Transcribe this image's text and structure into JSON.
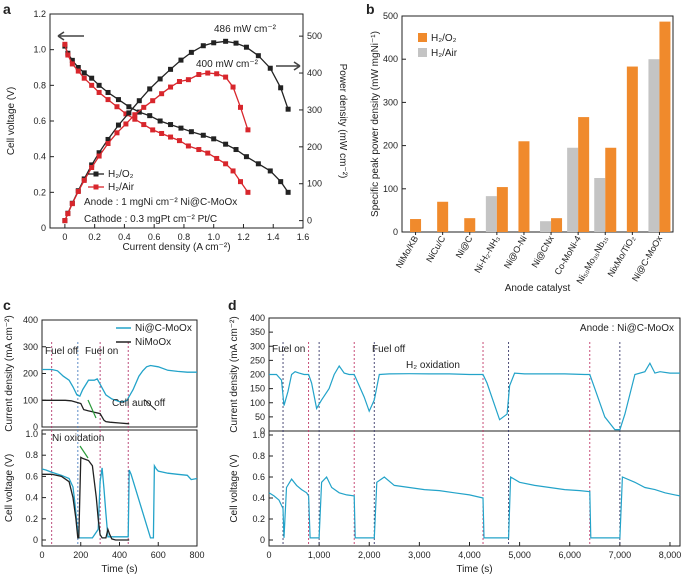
{
  "chart_data": [
    {
      "panel": "a",
      "type": "line",
      "xlabel": "Current density (A cm⁻²)",
      "ylabel": "Cell voltage (V)",
      "y2label": "Power density (mW cm⁻²)",
      "xlim": [
        -0.1,
        1.6
      ],
      "ylim": [
        0,
        1.2
      ],
      "y2lim": [
        -20,
        560
      ],
      "xticks": [
        0,
        0.2,
        0.4,
        0.6,
        0.8,
        1.0,
        1.2,
        1.4,
        1.6
      ],
      "xtick_labels": [
        "0",
        "0.2",
        "0.4",
        "0.6",
        "0.8",
        "1.0",
        "1.2",
        "1.4",
        "1.6"
      ],
      "yticks": [
        0,
        0.2,
        0.4,
        0.6,
        0.8,
        1.0,
        1.2
      ],
      "ytick_labels": [
        "0",
        "0.2",
        "0.4",
        "0.6",
        "0.8",
        "1.0",
        "1.2"
      ],
      "y2ticks": [
        0,
        100,
        200,
        300,
        400,
        500
      ],
      "y2tick_labels": [
        "0",
        "100",
        "200",
        "300",
        "400",
        "500"
      ],
      "annotations": [
        "486 mW cm⁻²",
        "400 mW cm⁻²"
      ],
      "text_lines": [
        "Anode : 1 mgNi cm⁻² Ni@C-MoOx",
        "Cathode : 0.3 mgPt cm⁻² Pt/C"
      ],
      "series": [
        {
          "name": "H₂/O₂",
          "color": "#222222",
          "axis": "left",
          "x": [
            0.0,
            0.02,
            0.05,
            0.09,
            0.13,
            0.18,
            0.23,
            0.29,
            0.36,
            0.43,
            0.5,
            0.57,
            0.64,
            0.71,
            0.78,
            0.85,
            0.93,
            1.0,
            1.08,
            1.15,
            1.22,
            1.3,
            1.38,
            1.45,
            1.5
          ],
          "y": [
            1.02,
            0.98,
            0.94,
            0.9,
            0.87,
            0.84,
            0.8,
            0.76,
            0.72,
            0.68,
            0.65,
            0.63,
            0.6,
            0.58,
            0.56,
            0.54,
            0.52,
            0.5,
            0.47,
            0.44,
            0.4,
            0.36,
            0.32,
            0.26,
            0.2
          ]
        },
        {
          "name": "H₂/Air",
          "color": "#d8262c",
          "axis": "left",
          "x": [
            0.0,
            0.02,
            0.05,
            0.09,
            0.13,
            0.18,
            0.23,
            0.29,
            0.35,
            0.41,
            0.47,
            0.53,
            0.59,
            0.65,
            0.71,
            0.77,
            0.83,
            0.9,
            0.96,
            1.02,
            1.08,
            1.13,
            1.18,
            1.23
          ],
          "y": [
            1.03,
            0.97,
            0.92,
            0.88,
            0.84,
            0.8,
            0.76,
            0.72,
            0.68,
            0.64,
            0.61,
            0.58,
            0.55,
            0.53,
            0.51,
            0.49,
            0.46,
            0.44,
            0.42,
            0.39,
            0.36,
            0.32,
            0.26,
            0.2
          ]
        },
        {
          "name": "H₂/O₂ power",
          "color": "#222222",
          "axis": "right",
          "x": [
            0.0,
            0.02,
            0.05,
            0.09,
            0.13,
            0.18,
            0.23,
            0.29,
            0.36,
            0.43,
            0.5,
            0.57,
            0.64,
            0.71,
            0.78,
            0.85,
            0.93,
            1.0,
            1.08,
            1.15,
            1.22,
            1.3,
            1.38,
            1.45,
            1.5
          ],
          "y": [
            0,
            20,
            47,
            81,
            113,
            151,
            184,
            220,
            259,
            292,
            325,
            357,
            384,
            410,
            435,
            456,
            474,
            482,
            486,
            481,
            470,
            447,
            413,
            360,
            302
          ]
        },
        {
          "name": "H₂/Air power",
          "color": "#d8262c",
          "axis": "right",
          "x": [
            0.0,
            0.02,
            0.05,
            0.09,
            0.13,
            0.18,
            0.23,
            0.29,
            0.35,
            0.41,
            0.47,
            0.53,
            0.59,
            0.65,
            0.71,
            0.77,
            0.83,
            0.9,
            0.96,
            1.02,
            1.08,
            1.13,
            1.18,
            1.23
          ],
          "y": [
            0,
            19,
            46,
            79,
            109,
            144,
            175,
            209,
            238,
            262,
            287,
            307,
            325,
            344,
            362,
            377,
            382,
            396,
            400,
            398,
            389,
            362,
            307,
            246
          ]
        }
      ]
    },
    {
      "panel": "b",
      "type": "bar",
      "xlabel": "Anode catalyst",
      "ylabel": "Specific peak power density (mW mgNi⁻¹)",
      "ylim": [
        0,
        500
      ],
      "yticks": [
        0,
        100,
        200,
        300,
        400,
        500
      ],
      "ytick_labels": [
        "0",
        "100",
        "200",
        "300",
        "400",
        "500"
      ],
      "categories": [
        "NiMo/KB",
        "NiCu/C",
        "Ni@C",
        "Ni-H₂-NH₃",
        "Ni@O-Ni",
        "Ni@CNx",
        "Co-MoNi-4",
        "Ni₅₀Mo₃₅Nb₁₅",
        "NixMo/TiO₂",
        "Ni@C-MoOx"
      ],
      "series": [
        {
          "name": "H₂/O₂",
          "color": "#f08a2c",
          "values": [
            30,
            70,
            32,
            104,
            210,
            32,
            266,
            195,
            383,
            487
          ]
        },
        {
          "name": "H₂/Air",
          "color": "#c4c4c4",
          "values": [
            null,
            null,
            null,
            83,
            null,
            25,
            195,
            125,
            null,
            400
          ]
        }
      ]
    },
    {
      "panel": "c",
      "type": "line",
      "xlabel": "Time (s)",
      "top_ylabel": "Current density (mA cm⁻²)",
      "bottom_ylabel": "Cell voltage (V)",
      "xlim": [
        0,
        800
      ],
      "top_ylim": [
        0,
        400
      ],
      "bottom_ylim": [
        0,
        1.0
      ],
      "xticks": [
        0,
        200,
        400,
        600,
        800
      ],
      "top_yticks": [
        0,
        100,
        200,
        300,
        400
      ],
      "bottom_yticks": [
        0,
        0.2,
        0.4,
        0.6,
        0.8,
        1.0
      ],
      "xtick_labels": [
        "0",
        "200",
        "400",
        "600",
        "800"
      ],
      "top_ytick_labels": [
        "0",
        "100",
        "200",
        "300",
        "400"
      ],
      "bottom_ytick_labels": [
        "0",
        "0.2",
        "0.4",
        "0.6",
        "0.8",
        "1.0"
      ],
      "event_lines": [
        50,
        185,
        300,
        445
      ],
      "annotations": [
        "Fuel off",
        "Fuel on",
        "Cell auto off",
        "Ni oxidation"
      ],
      "series": [
        {
          "name": "Ni@C-MoOx",
          "color": "#23a3c9",
          "panel": "top",
          "x": [
            0,
            50,
            80,
            110,
            140,
            160,
            180,
            195,
            210,
            240,
            270,
            285,
            300,
            330,
            360,
            380,
            400,
            420,
            440,
            445,
            470,
            500,
            520,
            540,
            560,
            600,
            650,
            700,
            750,
            800
          ],
          "y": [
            215,
            215,
            210,
            190,
            175,
            150,
            120,
            115,
            140,
            175,
            175,
            180,
            160,
            120,
            105,
            100,
            95,
            95,
            100,
            108,
            140,
            190,
            210,
            225,
            230,
            225,
            212,
            208,
            205,
            205
          ]
        },
        {
          "name": "NiMoOx",
          "color": "#222222",
          "panel": "top",
          "x": [
            0,
            50,
            120,
            150,
            175,
            200,
            215,
            240,
            255,
            270,
            300,
            320,
            330,
            350,
            400,
            450
          ],
          "y": [
            100,
            100,
            100,
            98,
            93,
            88,
            65,
            60,
            58,
            55,
            50,
            25,
            20,
            18,
            15,
            12
          ]
        },
        {
          "name": "Ni@C-MoOx voltage",
          "color": "#23a3c9",
          "panel": "bottom",
          "x": [
            0,
            20,
            50,
            100,
            140,
            160,
            170,
            180,
            190,
            200,
            210,
            260,
            290,
            300,
            310,
            320,
            330,
            340,
            400,
            445,
            450,
            460,
            560,
            575,
            580,
            590,
            600,
            650,
            700,
            750,
            770,
            800
          ],
          "y": [
            0.67,
            0.66,
            0.64,
            0.61,
            0.58,
            0.5,
            0.35,
            0.15,
            0.02,
            0.02,
            0.02,
            0.02,
            0.1,
            0.55,
            0.68,
            0.48,
            0.25,
            0.03,
            0.03,
            0.03,
            0.66,
            0.62,
            0.02,
            0.02,
            0.7,
            0.67,
            0.65,
            0.63,
            0.62,
            0.61,
            0.57,
            0.58
          ]
        },
        {
          "name": "NiMoOx voltage",
          "color": "#222222",
          "panel": "bottom",
          "x": [
            0,
            50,
            100,
            140,
            160,
            175,
            185,
            190,
            200,
            210,
            240,
            260,
            280,
            290,
            300,
            310,
            320,
            330,
            340,
            350,
            360,
            380,
            450
          ],
          "y": [
            0.62,
            0.62,
            0.6,
            0.55,
            0.4,
            0.2,
            0.02,
            0.02,
            0.78,
            0.77,
            0.75,
            0.7,
            0.4,
            0.2,
            0.05,
            0.02,
            0.02,
            0.02,
            0.1,
            0.05,
            0.01,
            0.0,
            0.0
          ]
        }
      ]
    },
    {
      "panel": "d",
      "type": "line",
      "xlabel": "Time (s)",
      "top_ylabel": "Current density (mA cm⁻²)",
      "bottom_ylabel": "Cell voltage (V)",
      "xlim": [
        0,
        8200
      ],
      "top_ylim": [
        0,
        400
      ],
      "bottom_ylim": [
        0,
        1.0
      ],
      "xticks": [
        0,
        1000,
        2000,
        3000,
        4000,
        5000,
        6000,
        7000,
        8000
      ],
      "xtick_labels": [
        "0",
        "1,000",
        "2,000",
        "3,000",
        "4,000",
        "5,000",
        "6,000",
        "7,000",
        "8,000"
      ],
      "top_yticks": [
        0,
        50,
        100,
        150,
        200,
        250,
        300,
        350,
        400
      ],
      "top_ytick_labels": [
        "0",
        "50",
        "100",
        "150",
        "200",
        "250",
        "300",
        "350",
        "400"
      ],
      "bottom_yticks": [
        0,
        0.2,
        0.4,
        0.6,
        0.8,
        1.0
      ],
      "bottom_ytick_labels": [
        "0",
        "0.2",
        "0.4",
        "0.6",
        "0.8",
        "1.0"
      ],
      "event_lines_black": [
        280,
        1000,
        2100,
        4780,
        7000
      ],
      "event_lines_red": [
        790,
        1700,
        4270,
        6400
      ],
      "annotations": [
        "Fuel on",
        "Fuel off",
        "H₂ oxidation",
        "Anode : Ni@C-MoOx"
      ],
      "series": [
        {
          "name": "Ni@C-MoOx current",
          "color": "#23a3c9",
          "panel": "top",
          "x": [
            0,
            150,
            250,
            300,
            380,
            450,
            520,
            600,
            700,
            790,
            850,
            950,
            1050,
            1200,
            1300,
            1400,
            1500,
            1600,
            1700,
            1800,
            1900,
            2000,
            2100,
            2200,
            2400,
            2800,
            3200,
            3600,
            4000,
            4270,
            4350,
            4600,
            4750,
            4800,
            4900,
            5100,
            5500,
            5900,
            6300,
            6400,
            6500,
            6700,
            6900,
            7000,
            7100,
            7300,
            7500,
            7600,
            7700,
            7800,
            8000,
            8200
          ],
          "y": [
            200,
            200,
            180,
            90,
            140,
            200,
            210,
            205,
            200,
            200,
            170,
            80,
            110,
            150,
            200,
            230,
            205,
            200,
            200,
            160,
            120,
            70,
            110,
            200,
            202,
            203,
            202,
            202,
            200,
            200,
            170,
            40,
            60,
            160,
            205,
            202,
            202,
            202,
            200,
            200,
            150,
            50,
            5,
            5,
            60,
            200,
            210,
            240,
            205,
            210,
            205,
            205
          ]
        },
        {
          "name": "Ni@C-MoOx voltage",
          "color": "#23a3c9",
          "panel": "bottom",
          "x": [
            0,
            100,
            200,
            280,
            300,
            350,
            450,
            550,
            650,
            750,
            790,
            820,
            1000,
            1050,
            1150,
            1250,
            1400,
            1550,
            1700,
            1720,
            2100,
            2150,
            2300,
            2500,
            2800,
            3100,
            3400,
            3700,
            4000,
            4270,
            4290,
            4780,
            4820,
            5000,
            5300,
            5600,
            5900,
            6200,
            6400,
            6420,
            7000,
            7050,
            7300,
            7500,
            7700,
            7900,
            8100,
            8200
          ],
          "y": [
            0.45,
            0.42,
            0.38,
            0.3,
            0.02,
            0.5,
            0.58,
            0.52,
            0.48,
            0.45,
            0.42,
            0.02,
            0.02,
            0.55,
            0.6,
            0.5,
            0.45,
            0.43,
            0.42,
            0.02,
            0.02,
            0.55,
            0.6,
            0.52,
            0.5,
            0.48,
            0.47,
            0.45,
            0.43,
            0.4,
            0.02,
            0.02,
            0.6,
            0.55,
            0.52,
            0.5,
            0.48,
            0.47,
            0.46,
            0.02,
            0.02,
            0.6,
            0.55,
            0.5,
            0.48,
            0.45,
            0.43,
            0.42
          ]
        }
      ]
    }
  ]
}
